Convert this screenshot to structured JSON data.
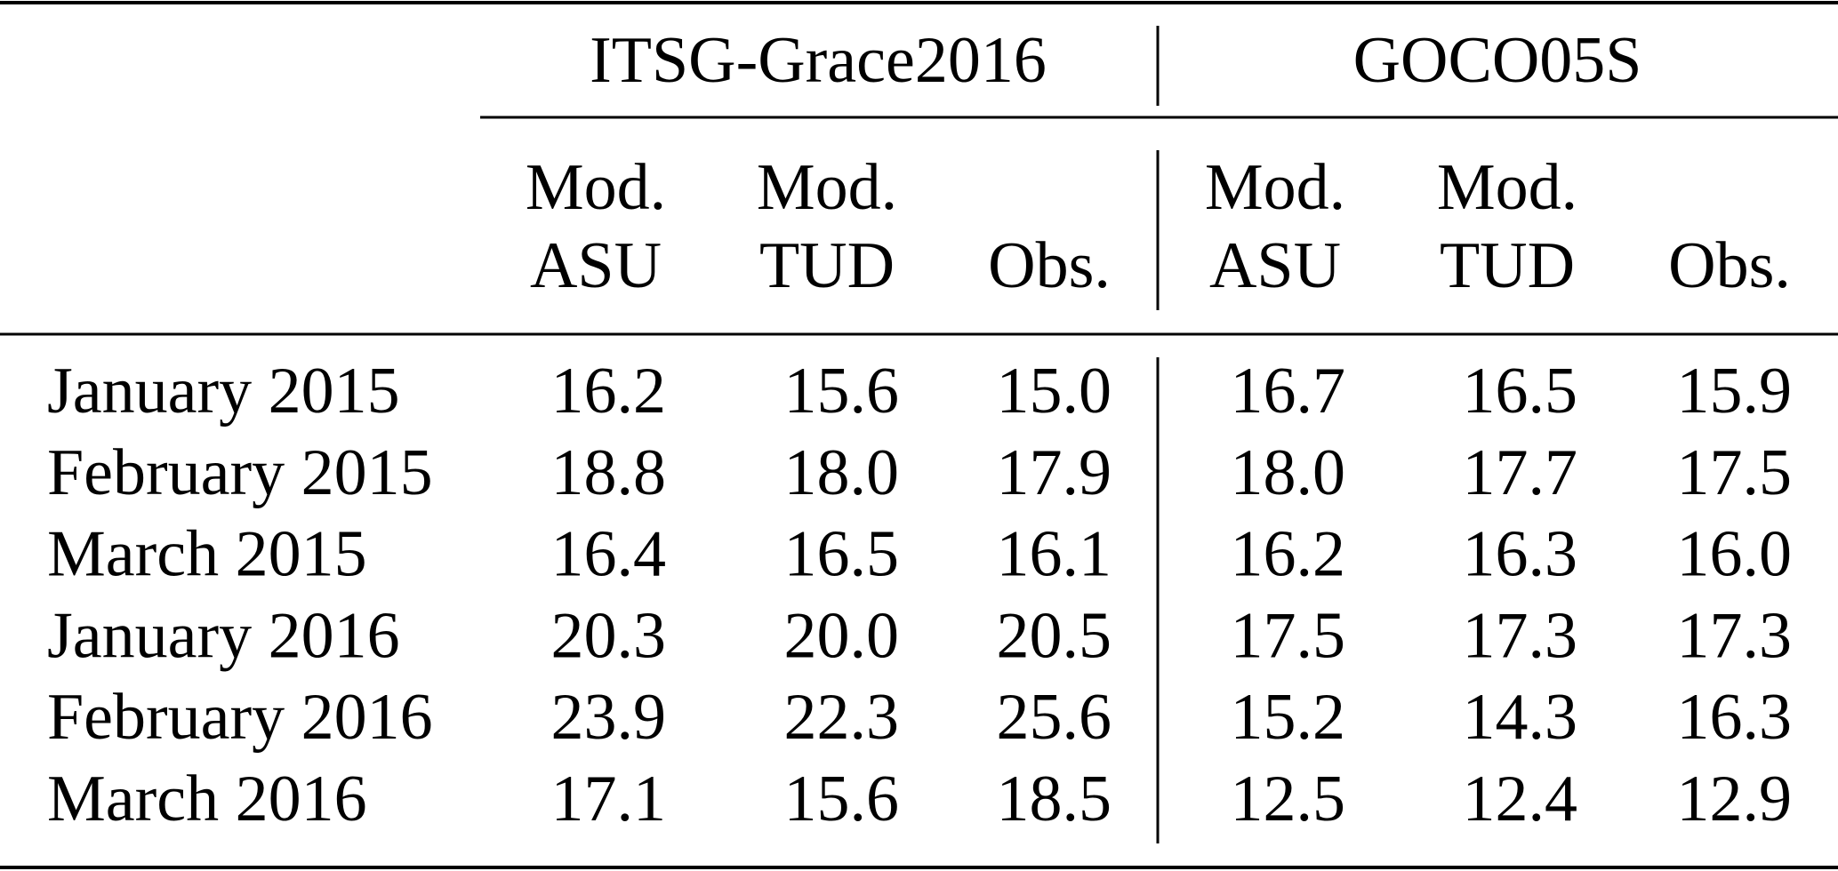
{
  "table": {
    "groups": [
      "ITSG-Grace2016",
      "GOCO05S"
    ],
    "columns": [
      [
        "Mod.",
        "ASU"
      ],
      [
        "Mod.",
        "TUD"
      ],
      [
        "Obs."
      ],
      [
        "Mod.",
        "ASU"
      ],
      [
        "Mod.",
        "TUD"
      ],
      [
        "Obs."
      ]
    ],
    "rows": [
      [
        "January 2015",
        "16.2",
        "15.6",
        "15.0",
        "16.7",
        "16.5",
        "15.9"
      ],
      [
        "February 2015",
        "18.8",
        "18.0",
        "17.9",
        "18.0",
        "17.7",
        "17.5"
      ],
      [
        "March 2015",
        "16.4",
        "16.5",
        "16.1",
        "16.2",
        "16.3",
        "16.0"
      ],
      [
        "January 2016",
        "20.3",
        "20.0",
        "20.5",
        "17.5",
        "17.3",
        "17.3"
      ],
      [
        "February 2016",
        "23.9",
        "22.3",
        "25.6",
        "15.2",
        "14.3",
        "16.3"
      ],
      [
        "March 2016",
        "17.1",
        "15.6",
        "18.5",
        "12.5",
        "12.4",
        "12.9"
      ]
    ]
  }
}
